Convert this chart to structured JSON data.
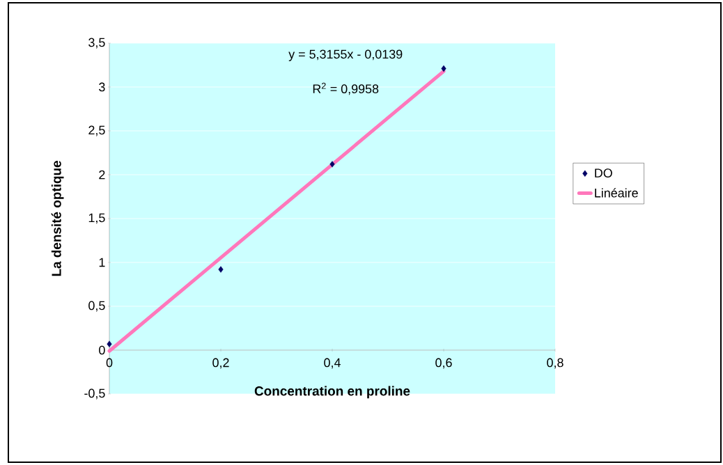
{
  "chart_data": {
    "type": "scatter",
    "xlabel": "Concentration en proline",
    "ylabel": "La densité optique",
    "x": [
      0,
      0.2,
      0.4,
      0.6
    ],
    "series": [
      {
        "name": "DO",
        "color": "#000066",
        "values": [
          0.07,
          0.92,
          2.12,
          3.21
        ]
      },
      {
        "name": "Linéaire",
        "type": "line",
        "marker": "none",
        "color": "#ff77bb",
        "x": [
          0,
          0.6
        ],
        "values": [
          -0.01,
          3.18
        ]
      }
    ],
    "xlim": [
      0,
      0.8
    ],
    "ylim": [
      -0.5,
      3.5
    ],
    "xticks": [
      0,
      {
        "value": 0.2,
        "label": "0,2"
      },
      {
        "value": 0.4,
        "label": "0,4"
      },
      {
        "value": 0.6,
        "label": "0,6"
      },
      {
        "value": 0.8,
        "label": "0,8"
      }
    ],
    "yticks": [
      {
        "value": -0.5,
        "label": "-0,5"
      },
      0,
      {
        "value": 0.5,
        "label": "0,5"
      },
      1,
      {
        "value": 1.5,
        "label": "1,5"
      },
      2,
      {
        "value": 2.5,
        "label": "2,5"
      },
      3,
      {
        "value": 3.5,
        "label": "3,5"
      }
    ],
    "grid": "y",
    "legend": "right",
    "marker": "diamond",
    "annotations": [
      "y = 5,3155x - 0,0139",
      "R$^{2}$ = 0,9958"
    ]
  }
}
